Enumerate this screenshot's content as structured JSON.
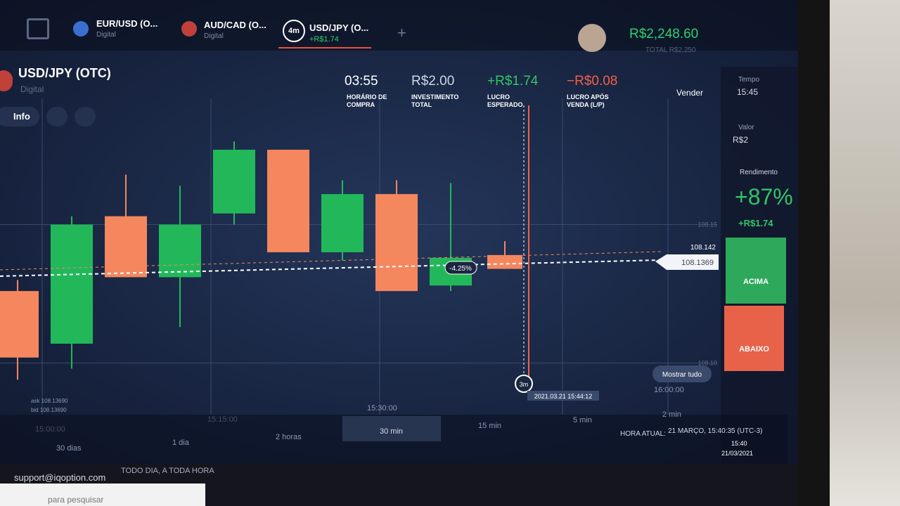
{
  "tabs": [
    {
      "title": "EUR/USD (O...",
      "subtitle": "Digital"
    },
    {
      "title": "AUD/CAD (O...",
      "subtitle": "Digital"
    },
    {
      "title": "USD/JPY (O...",
      "subtitle": "+R$1.74",
      "badge": "4m"
    }
  ],
  "account": {
    "balance": "R$2,248.60",
    "total": "TOTAL R$2,250"
  },
  "asset": {
    "name": "USD/JPY (OTC)",
    "type": "Digital",
    "info": "Info"
  },
  "stats": [
    {
      "value": "03:55",
      "label": "HORÁRIO DE COMPRA"
    },
    {
      "value": "R$2.00",
      "label": "INVESTIMENTO TOTAL"
    },
    {
      "value": "+R$1.74",
      "label": "LUCRO ESPERADO"
    },
    {
      "value": "−R$0.08",
      "label": "LUCRO APÓS VENDA (L/P)"
    }
  ],
  "sidebar": {
    "sell": "Vender",
    "time_label": "Tempo",
    "time": "15:45",
    "amount_label": "Valor",
    "amount": "R$2",
    "yield_label": "Rendimento",
    "yield": "+87%",
    "profit": "+R$1.74",
    "up": "ACIMA",
    "down": "ABAIXO"
  },
  "chart_data": {
    "type": "candlestick",
    "open": [
      108.126,
      108.107,
      108.153,
      108.131,
      108.154,
      108.177,
      108.14,
      108.161,
      108.128,
      108.139
    ],
    "high": [
      108.13,
      108.153,
      108.168,
      108.164,
      108.18,
      108.177,
      108.166,
      108.166,
      108.165,
      108.144
    ],
    "low": [
      108.094,
      108.098,
      108.131,
      108.113,
      108.15,
      108.14,
      108.137,
      108.126,
      108.126,
      108.134
    ],
    "close": [
      108.102,
      108.15,
      108.131,
      108.15,
      108.177,
      108.14,
      108.161,
      108.126,
      108.138,
      108.134
    ],
    "up_color": "#22b85a",
    "down_color": "#f5875f",
    "ylim": [
      108.089,
      108.193
    ],
    "yticks": [
      108.15,
      {
        "value": 108.1,
        "label": "108.10"
      }
    ],
    "grid": true
  },
  "chart_labels": {
    "price_current": "108.142",
    "price_marker": "108.1369",
    "trade_change": "-4.25%",
    "expiry": "3m",
    "timestamp": "2021.03.21 15:44:12",
    "show_all": "Mostrar tudo",
    "ask": "ask 108.13690",
    "bid": "bid 108.13690",
    "times": [
      "15:00:00",
      "15:15:00",
      "15:30:00",
      "16:00:00"
    ]
  },
  "periods": [
    "30 dias",
    "1 dia",
    "2 horas",
    "30 min",
    "15 min",
    "5 min",
    "2 min"
  ],
  "status": {
    "clock_label": "HORA ATUAL:",
    "clock": "21 MARÇO, 15:40:35 (UTC-3)"
  },
  "footer": {
    "support": "support@iqoption.com",
    "slogan": "TODO DIA, A TODA HORA"
  },
  "taskbar": {
    "search": "para pesquisar",
    "time": "15:40",
    "date": "21/03/2021"
  }
}
